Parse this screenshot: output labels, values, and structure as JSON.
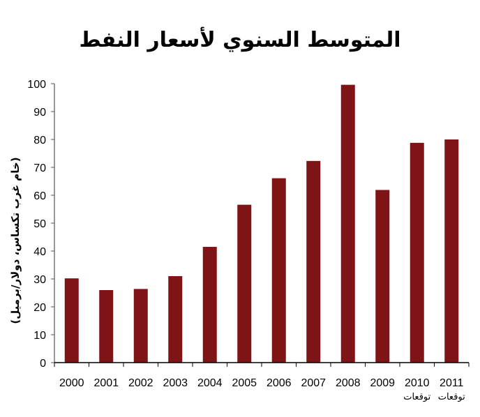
{
  "chart_data": {
    "type": "bar",
    "title": "المتوسط السنوي لأسعار النفط",
    "xlabel": "",
    "ylabel": "(خام غرب تكساس، دولار/برميل)",
    "ylim": [
      0,
      100
    ],
    "yticks": [
      0,
      10,
      20,
      30,
      40,
      50,
      60,
      70,
      80,
      90,
      100
    ],
    "grid": false,
    "legend": null,
    "bar_color": "#7f1416",
    "categories": [
      "2000",
      "2001",
      "2002",
      "2003",
      "2004",
      "2005",
      "2006",
      "2007",
      "2008",
      "2009",
      "2010",
      "2011"
    ],
    "category_sublabels": [
      "",
      "",
      "",
      "",
      "",
      "",
      "",
      "",
      "",
      "",
      "توقعات",
      "توقعات"
    ],
    "values": [
      30.2,
      26.0,
      26.4,
      31.0,
      41.5,
      56.6,
      66.1,
      72.3,
      99.6,
      61.9,
      78.8,
      80.0
    ]
  }
}
